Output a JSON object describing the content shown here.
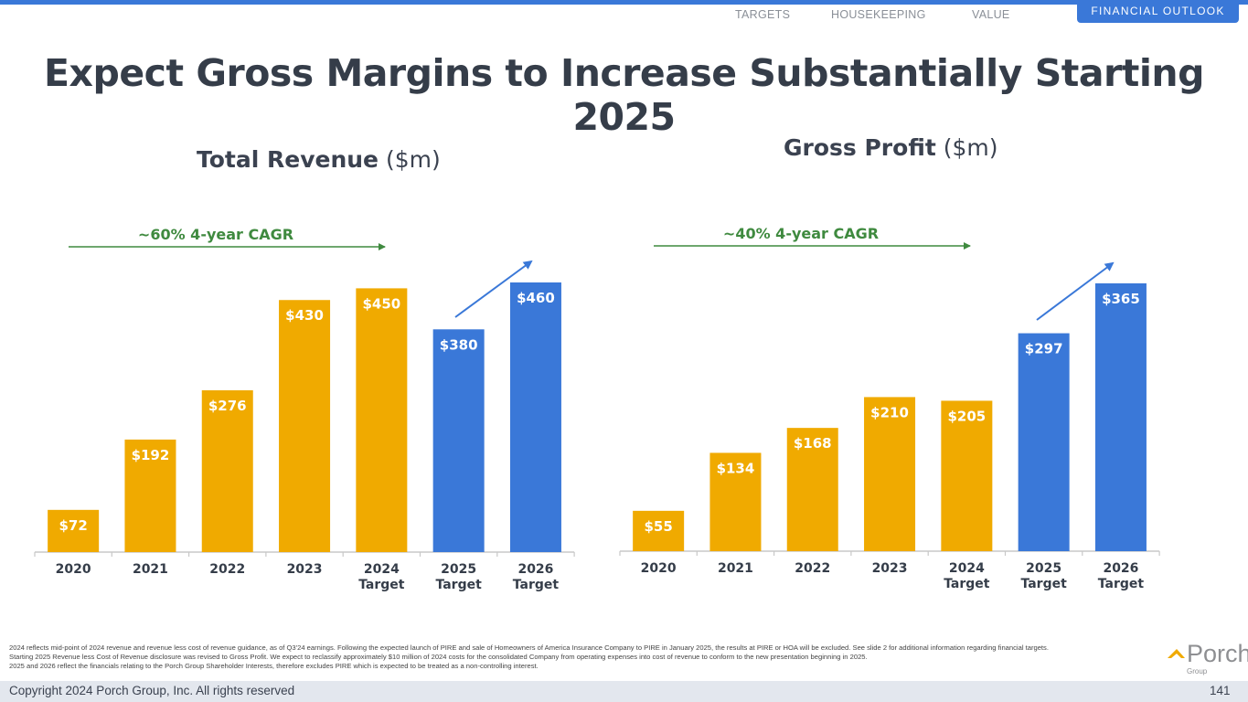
{
  "nav": {
    "items": [
      "TARGETS",
      "HOUSEKEEPING",
      "VALUE"
    ],
    "active": "FINANCIAL OUTLOOK"
  },
  "title": "Expect Gross Margins to Increase Substantially Starting 2025",
  "colors": {
    "actual": "#f0aa00",
    "target": "#3a78d8",
    "cagr": "#3f8a3f",
    "axis": "#c8c8c8",
    "label_text": "#353d49"
  },
  "chart_data": [
    {
      "type": "bar",
      "title": "Total Revenue",
      "unit": "($m)",
      "categories": [
        "2020",
        "2021",
        "2022",
        "2023",
        "2024 Target",
        "2025 Target",
        "2026 Target"
      ],
      "category_lines": [
        [
          "2020"
        ],
        [
          "2021"
        ],
        [
          "2022"
        ],
        [
          "2023"
        ],
        [
          "2024",
          "Target"
        ],
        [
          "2025",
          "Target"
        ],
        [
          "2026",
          "Target"
        ]
      ],
      "values": [
        72,
        192,
        276,
        430,
        450,
        380,
        460
      ],
      "data_labels": [
        "$72",
        "$192",
        "$276",
        "$430",
        "$450",
        "$380",
        "$460"
      ],
      "series_type": [
        "actual",
        "actual",
        "actual",
        "actual",
        "actual",
        "target",
        "target"
      ],
      "annotation": "~60% 4-year CAGR",
      "ylim": [
        0,
        460
      ],
      "xlabel": "",
      "ylabel": "",
      "grid": false
    },
    {
      "type": "bar",
      "title": "Gross Profit",
      "unit": "($m)",
      "categories": [
        "2020",
        "2021",
        "2022",
        "2023",
        "2024 Target",
        "2025 Target",
        "2026 Target"
      ],
      "category_lines": [
        [
          "2020"
        ],
        [
          "2021"
        ],
        [
          "2022"
        ],
        [
          "2023"
        ],
        [
          "2024",
          "Target"
        ],
        [
          "2025",
          "Target"
        ],
        [
          "2026",
          "Target"
        ]
      ],
      "values": [
        55,
        134,
        168,
        210,
        205,
        297,
        365
      ],
      "data_labels": [
        "$55",
        "$134",
        "$168",
        "$210",
        "$205",
        "$297",
        "$365"
      ],
      "series_type": [
        "actual",
        "actual",
        "actual",
        "actual",
        "actual",
        "target",
        "target"
      ],
      "annotation": "~40% 4-year CAGR",
      "ylim": [
        0,
        365
      ],
      "xlabel": "",
      "ylabel": "",
      "grid": false
    }
  ],
  "footnotes": [
    "2024 reflects mid-point of 2024 revenue and revenue less cost of revenue guidance, as of Q3'24 earnings. Following the expected launch of PIRE and sale of Homeowners of America Insurance Company to PIRE in January 2025, the results at PIRE or HOA will be excluded. See slide 2 for additional information regarding financial targets.",
    "Starting 2025 Revenue less Cost of Revenue disclosure was revised to Gross Profit. We expect to reclassify approximately $10 million of 2024 costs for the consolidated Company from operating expenses into cost of revenue to conform to the new presentation beginning in 2025.",
    "2025 and 2026 reflect the financials relating to the Porch Group Shareholder Interests, therefore excludes PIRE which is expected to be treated as a non-controlling interest."
  ],
  "footer": {
    "copyright": "Copyright 2024 Porch Group, Inc. All rights reserved",
    "page_number": "141"
  },
  "logo": {
    "name": "Porch",
    "sub": "Group"
  }
}
